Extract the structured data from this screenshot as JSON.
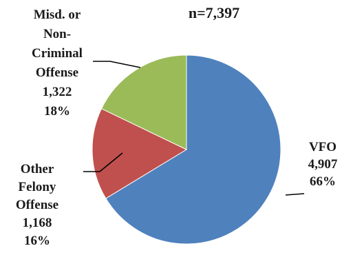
{
  "chart_data": {
    "type": "pie",
    "title": "n=7,397",
    "slices": [
      {
        "name": "VFO",
        "value": 4907,
        "value_label": "4,907",
        "percent_label": "66%",
        "color": "#4F81BD",
        "label_lines": [
          "VFO",
          "4,907",
          "66%"
        ]
      },
      {
        "name": "Other Felony Offense",
        "value": 1168,
        "value_label": "1,168",
        "percent_label": "16%",
        "color": "#C0504D",
        "label_lines": [
          "Other",
          "Felony",
          "Offense",
          "1,168",
          "16%"
        ]
      },
      {
        "name": "Misd. or Non-Criminal Offense",
        "value": 1322,
        "value_label": "1,322",
        "percent_label": "18%",
        "color": "#9BBB59",
        "label_lines": [
          "Misd. or",
          "Non-",
          "Criminal",
          "Offense",
          "1,322",
          "18%"
        ]
      }
    ],
    "start_angle_deg": 0,
    "direction": "clockwise",
    "legend": "none",
    "leader_lines": true
  }
}
